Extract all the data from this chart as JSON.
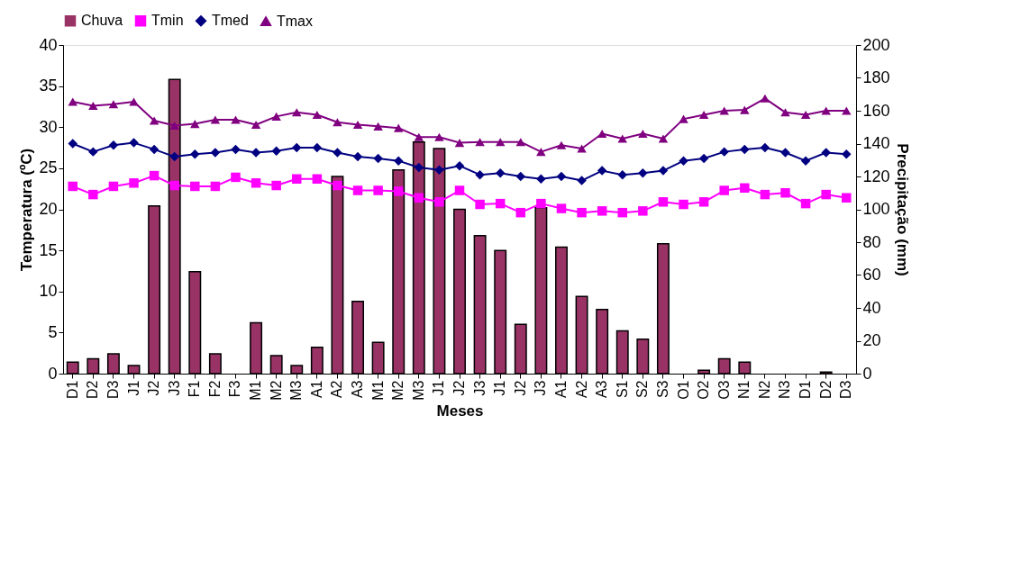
{
  "chart_data": {
    "type": "line",
    "xlabel": "Meses",
    "ylabel": "Temperatura (ºC)",
    "y2label": "Precipitação (mm)",
    "categories": [
      "D1",
      "D2",
      "D3",
      "J1",
      "J2",
      "J3",
      "F1",
      "F2",
      "F3",
      "M1",
      "M2",
      "M3",
      "A1",
      "A2",
      "A3",
      "M1",
      "M2",
      "M3",
      "J1",
      "J2",
      "J3",
      "J1",
      "J2",
      "J3",
      "A1",
      "A2",
      "A3",
      "S1",
      "S2",
      "S3",
      "O1",
      "O2",
      "O3",
      "N1",
      "N2",
      "N3",
      "D1",
      "D2",
      "D3"
    ],
    "ylim": [
      0,
      40
    ],
    "yticks": [
      0,
      5,
      10,
      15,
      20,
      25,
      30,
      35,
      40
    ],
    "y2lim": [
      0,
      200
    ],
    "y2ticks": [
      0,
      20,
      40,
      60,
      80,
      100,
      120,
      140,
      160,
      180,
      200
    ],
    "legend": "top",
    "grid": false,
    "line_style": "solid",
    "series": [
      {
        "name": "Chuva",
        "type": "bar",
        "axis": "y2",
        "color": "#993366",
        "values": [
          7,
          9,
          12,
          5,
          102,
          179,
          62,
          12,
          0,
          31,
          11,
          5,
          16,
          120,
          44,
          19,
          124,
          141,
          137,
          100,
          84,
          75,
          30,
          101,
          77,
          47,
          39,
          26,
          21,
          79,
          0,
          2,
          9,
          7,
          0,
          0,
          0,
          1,
          0
        ]
      },
      {
        "name": "Tmin",
        "marker": "square",
        "color": "#ff00ff",
        "values": [
          22.8,
          21.8,
          22.8,
          23.2,
          24.1,
          22.9,
          22.8,
          22.8,
          23.9,
          23.2,
          22.9,
          23.7,
          23.7,
          22.9,
          22.3,
          22.3,
          22.2,
          21.4,
          20.9,
          22.3,
          20.6,
          20.7,
          19.6,
          20.7,
          20.1,
          19.6,
          19.8,
          19.6,
          19.8,
          20.9,
          20.6,
          20.9,
          22.3,
          22.6,
          21.8,
          22.0,
          20.7,
          21.8,
          21.4
        ]
      },
      {
        "name": "Tmed",
        "marker": "diamond",
        "color": "#000080",
        "values": [
          28.0,
          27.0,
          27.8,
          28.1,
          27.3,
          26.4,
          26.7,
          26.9,
          27.3,
          26.9,
          27.1,
          27.5,
          27.5,
          26.9,
          26.4,
          26.2,
          25.9,
          25.1,
          24.8,
          25.3,
          24.2,
          24.4,
          24.0,
          23.7,
          24.0,
          23.5,
          24.7,
          24.2,
          24.4,
          24.7,
          25.9,
          26.2,
          27.0,
          27.3,
          27.5,
          26.9,
          25.9,
          26.9,
          26.7
        ]
      },
      {
        "name": "Tmax",
        "marker": "triangle",
        "color": "#800080",
        "values": [
          33.1,
          32.6,
          32.8,
          33.1,
          30.8,
          30.2,
          30.4,
          30.9,
          30.9,
          30.3,
          31.3,
          31.8,
          31.5,
          30.6,
          30.3,
          30.1,
          29.9,
          28.8,
          28.8,
          28.1,
          28.2,
          28.2,
          28.2,
          27.0,
          27.8,
          27.4,
          29.2,
          28.6,
          29.2,
          28.6,
          31.0,
          31.5,
          32.0,
          32.1,
          33.5,
          31.8,
          31.5,
          32.0,
          32.0
        ]
      }
    ]
  }
}
